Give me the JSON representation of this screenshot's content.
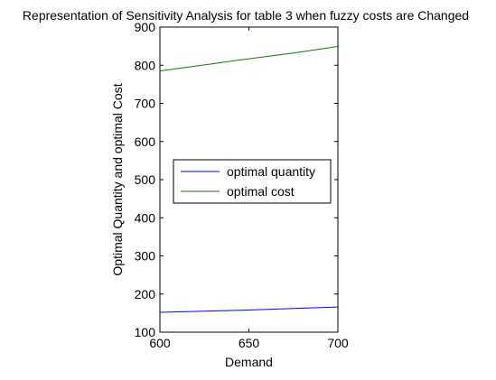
{
  "chart_data": {
    "type": "line",
    "title": "Representation of Sensitivity Analysis for table 3 when fuzzy costs are Changed",
    "xlabel": "Demand",
    "ylabel": "Optimal Quantity and optimal Cost",
    "xlim": [
      600,
      700
    ],
    "ylim": [
      100,
      900
    ],
    "x_ticks": [
      600,
      650,
      700
    ],
    "y_ticks": [
      100,
      200,
      300,
      400,
      500,
      600,
      700,
      800,
      900
    ],
    "grid": false,
    "legend_position": "center-right",
    "series": [
      {
        "name": "optimal quantity",
        "color": "#0000ff",
        "x": [
          600,
          625,
          650,
          675,
          700
        ],
        "y": [
          152,
          155,
          158,
          162,
          166
        ]
      },
      {
        "name": "optimal cost",
        "color": "#008000",
        "x": [
          600,
          625,
          650,
          675,
          700
        ],
        "y": [
          785,
          801,
          817,
          832,
          849
        ]
      }
    ]
  }
}
